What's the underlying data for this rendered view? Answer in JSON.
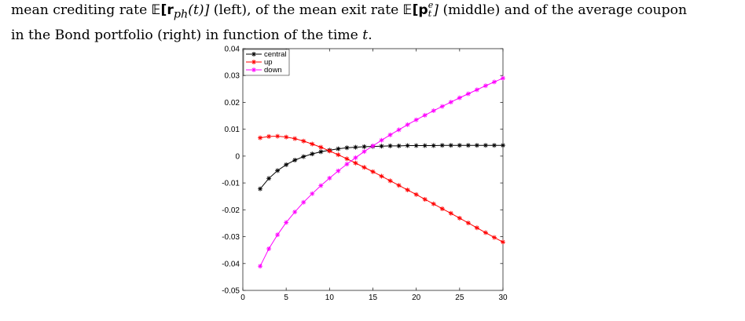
{
  "caption": {
    "line1_pre": "mean crediting rate ",
    "line1_m1": "𝔼[r",
    "line1_m1_sub": "ph",
    "line1_m1_post": "(t)]",
    "line1_mid": " (left), of the mean exit rate ",
    "line1_m2": "𝔼[p",
    "line1_m2_sup": "e",
    "line1_m2_sub": "t",
    "line1_m2_post": "]",
    "line1_post": " (middle) and of the average coupon",
    "line2_pre": "in the Bond portfolio (right) in function of the time ",
    "line2_m": "t",
    "line2_post": "."
  },
  "chart_data": {
    "type": "line",
    "xlim": [
      0,
      30
    ],
    "ylim": [
      -0.05,
      0.04
    ],
    "x_ticks": [
      0,
      5,
      10,
      15,
      20,
      25,
      30
    ],
    "y_ticks": [
      -0.05,
      -0.04,
      -0.03,
      -0.02,
      -0.01,
      0,
      0.01,
      0.02,
      0.03,
      0.04
    ],
    "x_tick_labels": [
      "0",
      "5",
      "10",
      "15",
      "20",
      "25",
      "30"
    ],
    "y_tick_labels": [
      "-0.05",
      "-0.04",
      "-0.03",
      "-0.02",
      "-0.01",
      "0",
      "0.01",
      "0.02",
      "0.03",
      "0.04"
    ],
    "grid": false,
    "legend_position": "top-left",
    "x": [
      2,
      3,
      4,
      5,
      6,
      7,
      8,
      9,
      10,
      11,
      12,
      13,
      14,
      15,
      16,
      17,
      18,
      19,
      20,
      21,
      22,
      23,
      24,
      25,
      26,
      27,
      28,
      29,
      30
    ],
    "series": [
      {
        "name": "central",
        "color": "#000000",
        "values": [
          -0.0122,
          -0.0083,
          -0.0054,
          -0.0032,
          -0.0015,
          -0.0002,
          0.0008,
          0.0016,
          0.0022,
          0.0027,
          0.0031,
          0.0033,
          0.0035,
          0.0036,
          0.0037,
          0.0038,
          0.0038,
          0.0039,
          0.0039,
          0.0039,
          0.0039,
          0.004,
          0.004,
          0.004,
          0.004,
          0.004,
          0.004,
          0.004,
          0.004
        ]
      },
      {
        "name": "up",
        "color": "#ff0000",
        "values": [
          0.0068,
          0.0073,
          0.0074,
          0.0071,
          0.0065,
          0.0056,
          0.0045,
          0.0033,
          0.0019,
          0.0005,
          -0.001,
          -0.0026,
          -0.0042,
          -0.0058,
          -0.0075,
          -0.0092,
          -0.0109,
          -0.0126,
          -0.0143,
          -0.0161,
          -0.0178,
          -0.0196,
          -0.0213,
          -0.0231,
          -0.0249,
          -0.0267,
          -0.0285,
          -0.0303,
          -0.032
        ]
      },
      {
        "name": "down",
        "color": "#ff00ff",
        "values": [
          -0.041,
          -0.0345,
          -0.0293,
          -0.0247,
          -0.0208,
          -0.0172,
          -0.014,
          -0.011,
          -0.0082,
          -0.0055,
          -0.003,
          -0.0006,
          0.0017,
          0.0038,
          0.0059,
          0.0079,
          0.0098,
          0.0117,
          0.0135,
          0.0152,
          0.0169,
          0.0185,
          0.0201,
          0.0217,
          0.0232,
          0.0247,
          0.0262,
          0.0276,
          0.029
        ]
      }
    ]
  }
}
